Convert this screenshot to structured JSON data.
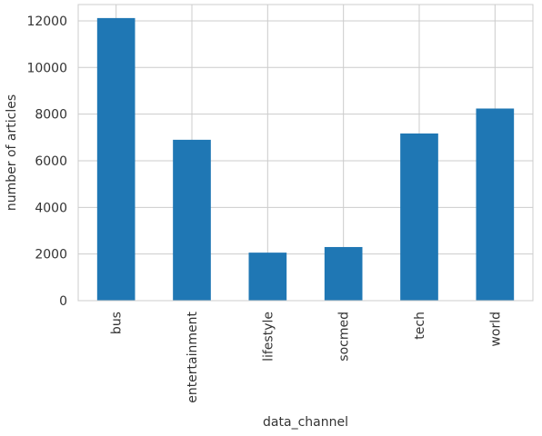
{
  "chart_data": {
    "type": "bar",
    "title": "",
    "xlabel": "data_channel",
    "ylabel": "number of articles",
    "categories": [
      "bus",
      "entertainment",
      "lifestyle",
      "socmed",
      "tech",
      "world"
    ],
    "values": [
      12120,
      6900,
      2060,
      2300,
      7170,
      8240
    ],
    "ylim": [
      0,
      12700
    ],
    "yticks": [
      0,
      2000,
      4000,
      6000,
      8000,
      10000,
      12000
    ],
    "ytick_labels": [
      "0",
      "2000",
      "4000",
      "6000",
      "8000",
      "10000",
      "12000"
    ],
    "grid": true,
    "legend": "none",
    "bar_color": "#1f77b4",
    "grid_color": "#cccccc",
    "spine_color": "#cccccc",
    "text_color": "#333333"
  }
}
